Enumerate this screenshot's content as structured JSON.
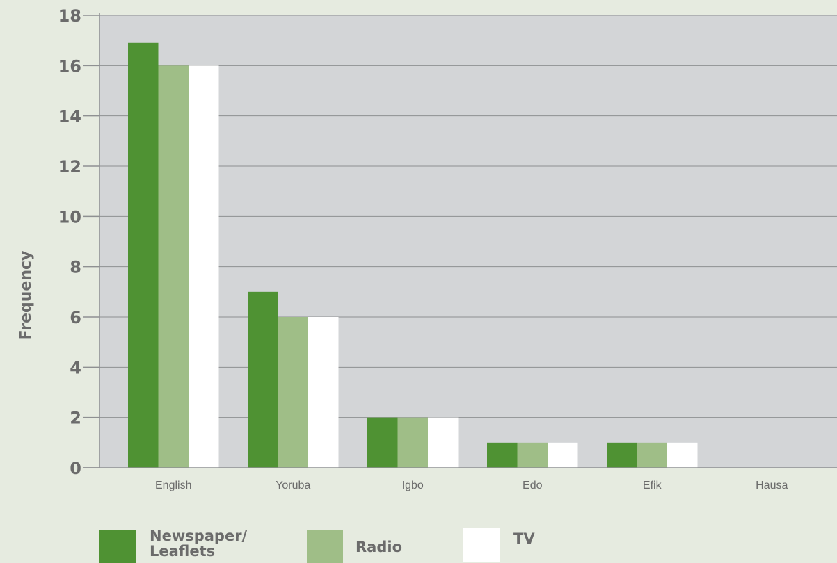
{
  "chart_data": {
    "type": "bar",
    "title": "",
    "xlabel": "",
    "ylabel": "Frequency",
    "ylim": [
      0,
      18
    ],
    "yticks": [
      "0",
      "2",
      "4",
      "6",
      "8",
      "10",
      "12",
      "14",
      "16",
      "18"
    ],
    "categories": [
      "English",
      "Yoruba",
      "Igbo",
      "Edo",
      "Efik",
      "Hausa"
    ],
    "series": [
      {
        "name": "Newspaper/ Leaflets",
        "label_lines": [
          "Newspaper/",
          "Leaflets"
        ],
        "color": "#4f9233",
        "values": [
          16.9,
          7,
          2,
          1,
          1,
          0
        ]
      },
      {
        "name": "Radio",
        "label_lines": [
          "Radio"
        ],
        "color": "#9fbe87",
        "values": [
          16,
          6,
          2,
          1,
          1,
          0
        ]
      },
      {
        "name": "TV",
        "label_lines": [
          "TV"
        ],
        "color": "#ffffff",
        "values": [
          16,
          6,
          2,
          1,
          1,
          0
        ]
      }
    ],
    "grid": true,
    "legend_position": "bottom",
    "plot_background": "#d3d5d7",
    "page_background": "#e6ebe0"
  }
}
